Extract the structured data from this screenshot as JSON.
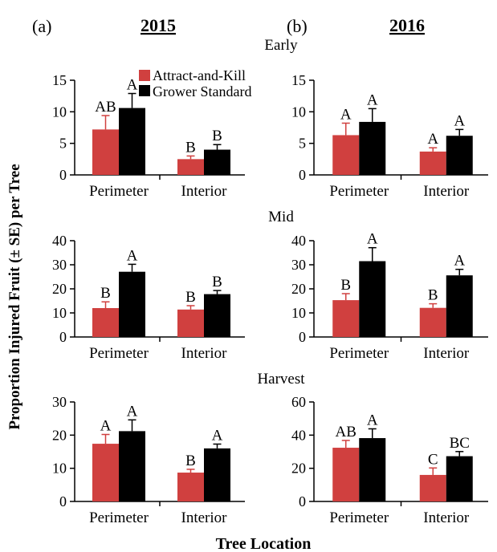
{
  "figure": {
    "panel_labels": [
      "(a)",
      "(b)"
    ],
    "year_headers": [
      "2015",
      "2016"
    ],
    "ylabel": "Proportion Injured Fruit (± SE)  per Tree",
    "xlabel": "Tree Location",
    "colors": {
      "attract_and_kill": "#d0403f",
      "grower_standard": "#000000"
    }
  },
  "legend": {
    "items": [
      "Attract-and-Kill",
      "Grower Standard"
    ],
    "placement": "top of panel (a) Early"
  },
  "chart_data": [
    {
      "type": "bar",
      "year": "2015",
      "period": "Early",
      "categories": [
        "Perimeter",
        "Interior"
      ],
      "ylim": [
        0,
        15
      ],
      "yticks": [
        0,
        5,
        10,
        15
      ],
      "series": [
        {
          "name": "Attract-and-Kill",
          "values": [
            7.2,
            2.5
          ],
          "errors": [
            2.2,
            0.5
          ],
          "letters": [
            "AB",
            "B"
          ]
        },
        {
          "name": "Grower Standard",
          "values": [
            10.6,
            4.0
          ],
          "errors": [
            2.3,
            0.8
          ],
          "letters": [
            "A",
            "B"
          ]
        }
      ]
    },
    {
      "type": "bar",
      "year": "2016",
      "period": "Early",
      "categories": [
        "Perimeter",
        "Interior"
      ],
      "ylim": [
        0,
        15
      ],
      "yticks": [
        0,
        5,
        10,
        15
      ],
      "series": [
        {
          "name": "Attract-and-Kill",
          "values": [
            6.3,
            3.7
          ],
          "errors": [
            1.9,
            0.6
          ],
          "letters": [
            "A",
            "A"
          ]
        },
        {
          "name": "Grower Standard",
          "values": [
            8.4,
            6.2
          ],
          "errors": [
            2.1,
            1.0
          ],
          "letters": [
            "A",
            "A"
          ]
        }
      ]
    },
    {
      "type": "bar",
      "year": "2015",
      "period": "Mid",
      "categories": [
        "Perimeter",
        "Interior"
      ],
      "ylim": [
        0,
        40
      ],
      "yticks": [
        0,
        10,
        20,
        30,
        40
      ],
      "series": [
        {
          "name": "Attract-and-Kill",
          "values": [
            12.0,
            11.4
          ],
          "errors": [
            2.6,
            1.6
          ],
          "letters": [
            "B",
            "B"
          ]
        },
        {
          "name": "Grower Standard",
          "values": [
            27.1,
            17.8
          ],
          "errors": [
            3.1,
            1.5
          ],
          "letters": [
            "A",
            "B"
          ]
        }
      ]
    },
    {
      "type": "bar",
      "year": "2016",
      "period": "Mid",
      "categories": [
        "Perimeter",
        "Interior"
      ],
      "ylim": [
        0,
        40
      ],
      "yticks": [
        0,
        10,
        20,
        30,
        40
      ],
      "series": [
        {
          "name": "Attract-and-Kill",
          "values": [
            15.3,
            12.1
          ],
          "errors": [
            2.7,
            1.7
          ],
          "letters": [
            "B",
            "B"
          ]
        },
        {
          "name": "Grower Standard",
          "values": [
            31.5,
            25.6
          ],
          "errors": [
            5.6,
            2.5
          ],
          "letters": [
            "A",
            "A"
          ]
        }
      ]
    },
    {
      "type": "bar",
      "year": "2015",
      "period": "Harvest",
      "categories": [
        "Perimeter",
        "Interior"
      ],
      "ylim": [
        0,
        30
      ],
      "yticks": [
        0,
        10,
        20,
        30
      ],
      "series": [
        {
          "name": "Attract-and-Kill",
          "values": [
            17.4,
            8.7
          ],
          "errors": [
            2.8,
            1.0
          ],
          "letters": [
            "A",
            "B"
          ]
        },
        {
          "name": "Grower Standard",
          "values": [
            21.2,
            16.0
          ],
          "errors": [
            3.4,
            1.3
          ],
          "letters": [
            "A",
            "A"
          ]
        }
      ]
    },
    {
      "type": "bar",
      "year": "2016",
      "period": "Harvest",
      "categories": [
        "Perimeter",
        "Interior"
      ],
      "ylim": [
        0,
        60
      ],
      "yticks": [
        0,
        20,
        40,
        60
      ],
      "series": [
        {
          "name": "Attract-and-Kill",
          "values": [
            32.4,
            16.0
          ],
          "errors": [
            4.4,
            4.2
          ],
          "letters": [
            "AB",
            "C"
          ]
        },
        {
          "name": "Grower Standard",
          "values": [
            38.2,
            27.3
          ],
          "errors": [
            5.6,
            2.8
          ],
          "letters": [
            "A",
            "BC"
          ]
        }
      ]
    }
  ]
}
